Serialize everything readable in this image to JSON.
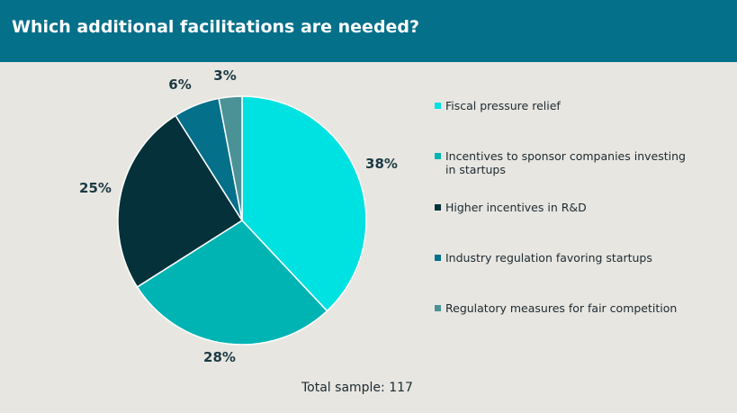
{
  "header": {
    "title": "Which additional facilitations are needed?"
  },
  "colors": {
    "header_bg": "#04708a",
    "background": "#e8e6e1",
    "slices": [
      "#00e2e2",
      "#00b4b4",
      "#05313b",
      "#04708a",
      "#4a9296"
    ]
  },
  "chart_data": {
    "type": "pie",
    "categories": [
      "Fiscal pressure relief",
      "Incentives to sponsor companies investing in startups",
      "Higher incentives in R&D",
      "Industry regulation favoring startups",
      "Regulatory measures for fair competition"
    ],
    "values": [
      38,
      28,
      25,
      6,
      3
    ],
    "value_labels": [
      "38%",
      "28%",
      "25%",
      "6%",
      "3%"
    ],
    "legend_position": "right"
  },
  "legend": [
    "Fiscal pressure relief",
    "Incentives to sponsor companies investing in startups",
    "Higher incentives in R&D",
    "Industry regulation favoring startups",
    "Regulatory measures for fair competition"
  ],
  "footnote": "Total sample: 117"
}
